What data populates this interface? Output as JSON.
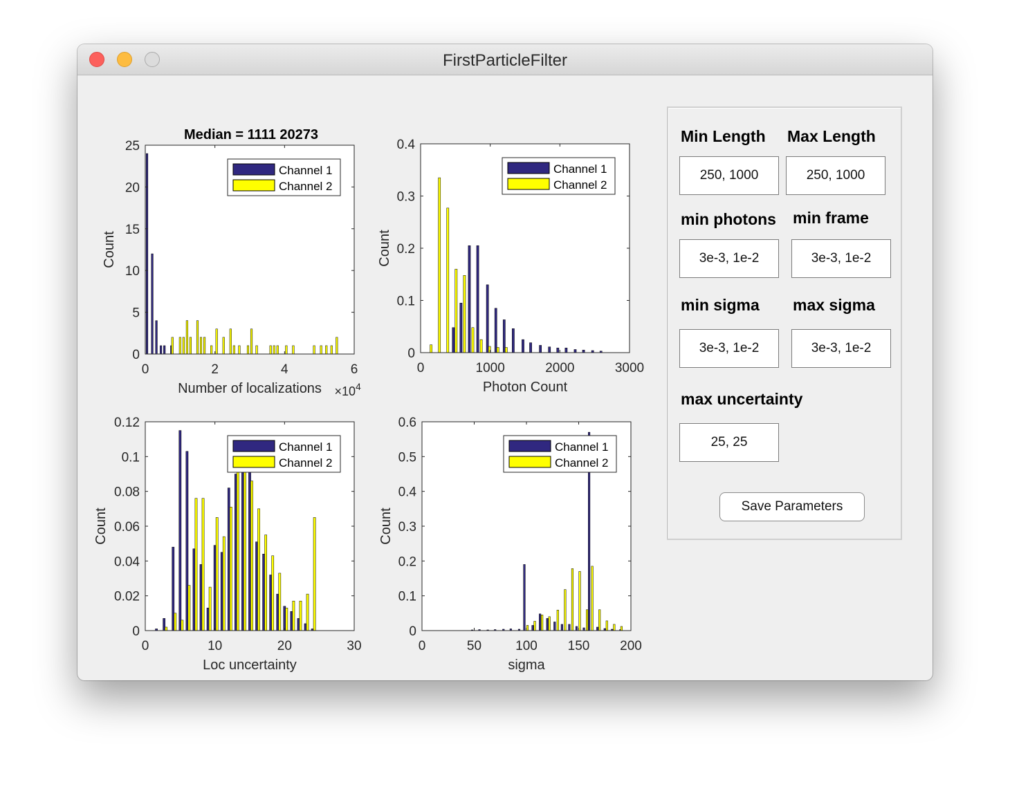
{
  "window": {
    "title": "FirstParticleFilter"
  },
  "legend": {
    "ch1": "Channel 1",
    "ch2": "Channel 2"
  },
  "colors": {
    "ch1": "#302880",
    "ch2": "#ffff00"
  },
  "panel": {
    "min_length_label": "Min Length",
    "max_length_label": "Max Length",
    "min_photons_label": "min photons",
    "min_frame_label": "min frame",
    "min_sigma_label": "min sigma",
    "max_sigma_label": "max sigma",
    "max_uncertainty_label": "max uncertainty",
    "min_length_value": "250, 1000",
    "max_length_value": "250, 1000",
    "min_photons_value": "3e-3, 1e-2",
    "min_frame_value": "3e-3, 1e-2",
    "min_sigma_value": "3e-3, 1e-2",
    "max_sigma_value": "3e-3, 1e-2",
    "max_uncertainty_value": "25, 25",
    "save_label": "Save Parameters"
  },
  "chart_data": [
    {
      "type": "bar",
      "title": "Median = 1111  20273",
      "xlabel": "Number of localizations",
      "ylabel": "Count",
      "xlim": [
        0,
        6
      ],
      "ylim": [
        0,
        25
      ],
      "xticks": [
        "0",
        "2",
        "4",
        "6"
      ],
      "yticks": [
        "0",
        "5",
        "10",
        "15",
        "20",
        "25"
      ],
      "xexponent_base": "×10",
      "xexponent_power": "4",
      "series": [
        {
          "name": "Channel 1",
          "x": [
            0.05,
            0.2,
            0.32,
            0.45,
            0.55,
            0.75
          ],
          "values": [
            24,
            12,
            4,
            1,
            1,
            1
          ]
        },
        {
          "name": "Channel 2",
          "x": [
            0.78,
            1.0,
            1.1,
            1.2,
            1.3,
            1.5,
            1.6,
            1.7,
            1.9,
            2.05,
            2.25,
            2.45,
            2.55,
            2.7,
            2.95,
            3.05,
            3.2,
            3.6,
            3.7,
            3.8,
            4.05,
            4.25,
            4.85,
            5.05,
            5.2,
            5.35,
            5.5
          ],
          "values": [
            2,
            2,
            2,
            4,
            2,
            4,
            2,
            2,
            1,
            3,
            2,
            3,
            1,
            1,
            1,
            3,
            1,
            1,
            1,
            1,
            1,
            1,
            1,
            1,
            1,
            1,
            2
          ]
        }
      ]
    },
    {
      "type": "bar",
      "title": "",
      "xlabel": "Photon Count",
      "ylabel": "Count",
      "xlim": [
        0,
        3000
      ],
      "ylim": [
        0,
        0.4
      ],
      "xticks": [
        "0",
        "1000",
        "2000",
        "3000"
      ],
      "yticks": [
        "0",
        "0.1",
        "0.2",
        "0.3",
        "0.4"
      ],
      "series": [
        {
          "name": "Channel 1",
          "x": [
            470,
            580,
            700,
            820,
            960,
            1080,
            1200,
            1330,
            1470,
            1580,
            1720,
            1850,
            1970,
            2090,
            2220,
            2340,
            2470,
            2590
          ],
          "values": [
            0.048,
            0.095,
            0.205,
            0.205,
            0.13,
            0.085,
            0.063,
            0.046,
            0.025,
            0.019,
            0.014,
            0.011,
            0.009,
            0.009,
            0.006,
            0.005,
            0.004,
            0.003
          ]
        },
        {
          "name": "Channel 2",
          "x": [
            150,
            270,
            390,
            510,
            630,
            750,
            870,
            990,
            1110,
            1230
          ],
          "values": [
            0.015,
            0.335,
            0.277,
            0.16,
            0.148,
            0.048,
            0.025,
            0.012,
            0.01,
            0.01
          ]
        }
      ]
    },
    {
      "type": "bar",
      "title": "",
      "xlabel": "Loc uncertainty",
      "ylabel": "Count",
      "xlim": [
        0,
        30
      ],
      "ylim": [
        0,
        0.12
      ],
      "xticks": [
        "0",
        "10",
        "20",
        "30"
      ],
      "yticks": [
        "0",
        "0.02",
        "0.04",
        "0.06",
        "0.08",
        "0.1",
        "0.12"
      ],
      "series": [
        {
          "name": "Channel 1",
          "x": [
            1.6,
            2.7,
            4.0,
            5.0,
            6.0,
            7.0,
            8.0,
            9.0,
            10.0,
            11.0,
            12.0,
            13.0,
            14.0,
            15.0,
            16.0,
            17.0,
            18.0,
            19.0,
            20.0,
            21.0,
            22.0,
            23.0,
            24.0
          ],
          "values": [
            0.001,
            0.007,
            0.048,
            0.115,
            0.103,
            0.047,
            0.038,
            0.013,
            0.049,
            0.045,
            0.082,
            0.09,
            0.094,
            0.092,
            0.051,
            0.044,
            0.032,
            0.021,
            0.014,
            0.011,
            0.007,
            0.004,
            0.001
          ]
        },
        {
          "name": "Channel 2",
          "x": [
            3.0,
            4.3,
            5.3,
            6.3,
            7.3,
            8.3,
            9.3,
            10.3,
            11.3,
            12.3,
            13.3,
            14.3,
            15.3,
            16.3,
            17.3,
            18.3,
            19.3,
            20.3,
            21.3,
            22.3,
            23.3,
            24.3
          ],
          "values": [
            0.002,
            0.01,
            0.006,
            0.026,
            0.076,
            0.076,
            0.025,
            0.065,
            0.054,
            0.071,
            0.098,
            0.098,
            0.086,
            0.07,
            0.055,
            0.043,
            0.033,
            0.013,
            0.017,
            0.017,
            0.021,
            0.065
          ]
        }
      ]
    },
    {
      "type": "bar",
      "title": "",
      "xlabel": "sigma",
      "ylabel": "Count",
      "xlim": [
        0,
        200
      ],
      "ylim": [
        0,
        0.6
      ],
      "xticks": [
        "0",
        "50",
        "100",
        "150",
        "200"
      ],
      "yticks": [
        "0",
        "0.1",
        "0.2",
        "0.3",
        "0.4",
        "0.5",
        "0.6"
      ],
      "series": [
        {
          "name": "Channel 1",
          "x": [
            48,
            55,
            63,
            70,
            78,
            85,
            93,
            98,
            106,
            113,
            120,
            127,
            134,
            141,
            148,
            155,
            160,
            168,
            175,
            182,
            190
          ],
          "values": [
            0.002,
            0.003,
            0.002,
            0.003,
            0.004,
            0.005,
            0.004,
            0.19,
            0.015,
            0.048,
            0.035,
            0.025,
            0.018,
            0.018,
            0.012,
            0.008,
            0.57,
            0.01,
            0.006,
            0.004,
            0.003
          ]
        },
        {
          "name": "Channel 2",
          "x": [
            101,
            108,
            115,
            122,
            130,
            137,
            144,
            151,
            158,
            163,
            170,
            177,
            184,
            191
          ],
          "values": [
            0.015,
            0.027,
            0.045,
            0.04,
            0.059,
            0.118,
            0.178,
            0.17,
            0.06,
            0.185,
            0.06,
            0.028,
            0.018,
            0.012
          ]
        }
      ]
    }
  ]
}
